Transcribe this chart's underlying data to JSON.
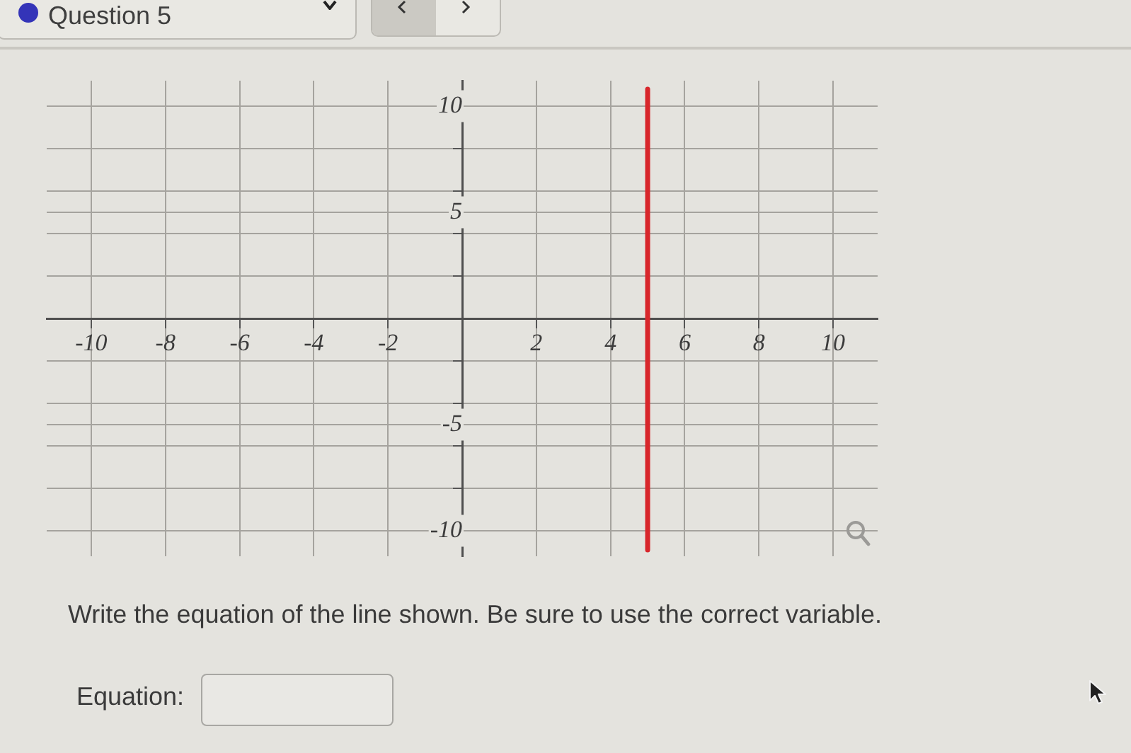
{
  "chart_data": {
    "type": "line",
    "title": "Question 5",
    "annotations": [
      "Write the equation of the line shown. Be sure to use the correct variable.",
      "Equation:"
    ],
    "series": [
      {
        "color": "#d8262b",
        "x": [
          5,
          5
        ],
        "values": [
          10.8,
          -10.9
        ]
      }
    ],
    "xlim": [
      -11.2,
      11.2
    ],
    "ylim": [
      -11.2,
      11.2
    ],
    "xticks": [
      -10,
      -8,
      -6,
      -4,
      -2,
      {
        "value": 0,
        "label": null
      },
      2,
      4,
      6,
      8,
      10
    ],
    "yticks": [
      -10,
      {
        "value": -8,
        "label": null
      },
      {
        "value": -6,
        "label": null
      },
      -5,
      {
        "value": -4,
        "label": null
      },
      {
        "value": -2,
        "label": null
      },
      {
        "value": 0,
        "label": null
      },
      {
        "value": 2,
        "label": null
      },
      {
        "value": 4,
        "label": null
      },
      5,
      {
        "value": 6,
        "label": null
      },
      {
        "value": 8,
        "label": null
      },
      10
    ],
    "grid": true,
    "marker": "none",
    "line_style": "solid"
  }
}
